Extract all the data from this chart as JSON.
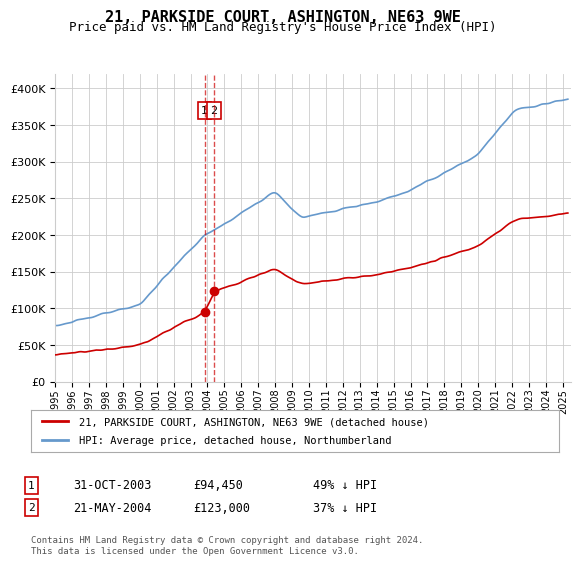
{
  "title": "21, PARKSIDE COURT, ASHINGTON, NE63 9WE",
  "subtitle": "Price paid vs. HM Land Registry's House Price Index (HPI)",
  "ylabel_ticks": [
    "£0",
    "£50K",
    "£100K",
    "£150K",
    "£200K",
    "£250K",
    "£300K",
    "£350K",
    "£400K"
  ],
  "ytick_values": [
    0,
    50000,
    100000,
    150000,
    200000,
    250000,
    300000,
    350000,
    400000
  ],
  "ylim": [
    0,
    420000
  ],
  "xlim_start": 1995.0,
  "xlim_end": 2025.5,
  "sale1_x": 2003.833,
  "sale1_y": 94450,
  "sale1_label": "1",
  "sale1_date": "31-OCT-2003",
  "sale1_price": "£94,450",
  "sale1_hpi": "49% ↓ HPI",
  "sale2_x": 2004.388,
  "sale2_y": 123000,
  "sale2_label": "2",
  "sale2_date": "21-MAY-2004",
  "sale2_price": "£123,000",
  "sale2_hpi": "37% ↓ HPI",
  "legend_label_red": "21, PARKSIDE COURT, ASHINGTON, NE63 9WE (detached house)",
  "legend_label_blue": "HPI: Average price, detached house, Northumberland",
  "footer": "Contains HM Land Registry data © Crown copyright and database right 2024.\nThis data is licensed under the Open Government Licence v3.0.",
  "red_color": "#cc0000",
  "blue_color": "#6699cc",
  "marker_color": "#cc0000",
  "grid_color": "#cccccc",
  "bg_color": "#ffffff"
}
